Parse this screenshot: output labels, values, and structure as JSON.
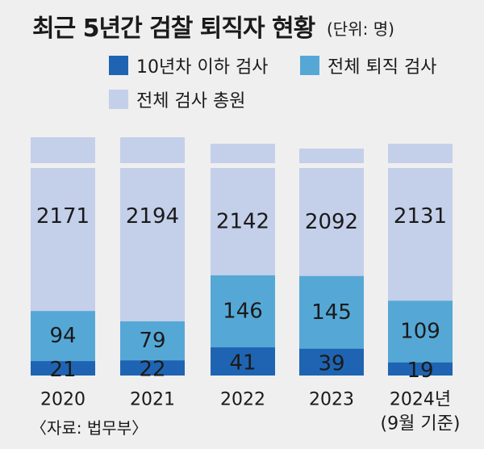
{
  "title": "최근 5년간 검찰 퇴직자 현황",
  "unit": "(단위: 명)",
  "source": "〈자료: 법무부〉",
  "colors": {
    "under10": "#1f64b3",
    "retired": "#55a8d6",
    "total": "#c4cfea"
  },
  "chart_data": {
    "type": "bar",
    "stacked": true,
    "categories": [
      "2020",
      "2021",
      "2022",
      "2023",
      "2024년\n(9월 기준)"
    ],
    "series": [
      {
        "name": "10년차 이하 검사",
        "values": [
          21,
          22,
          41,
          39,
          19
        ]
      },
      {
        "name": "전체 퇴직 검사",
        "values": [
          94,
          79,
          146,
          145,
          109
        ]
      },
      {
        "name": "전체 검사 총원",
        "values": [
          2171,
          2194,
          2142,
          2092,
          2131
        ]
      }
    ]
  }
}
